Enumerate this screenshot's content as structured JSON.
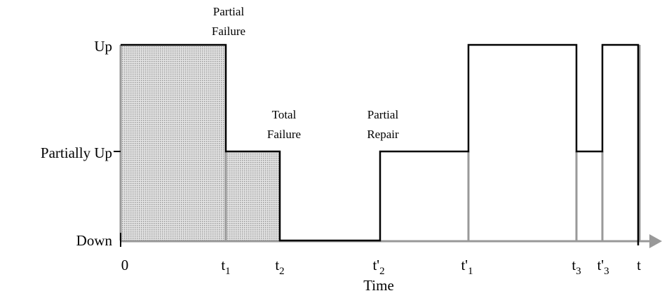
{
  "levels": {
    "up": "Up",
    "partial": "Partially Up",
    "down": "Down"
  },
  "x_labels": [
    {
      "base": "0"
    },
    {
      "base": "t",
      "sub": "1"
    },
    {
      "base": "t",
      "sub": "2"
    },
    {
      "base": "t'",
      "sub": "2"
    },
    {
      "base": "t'",
      "sub": "1"
    },
    {
      "base": "t",
      "sub": "3"
    },
    {
      "base": "t'",
      "sub": "3"
    },
    {
      "base": "t"
    }
  ],
  "axis_label": "Time",
  "annotations": {
    "partial_failure": [
      "Partial",
      "Failure"
    ],
    "total_failure": [
      "Total",
      "Failure"
    ],
    "partial_repair": [
      "Partial",
      "Repair"
    ]
  }
}
